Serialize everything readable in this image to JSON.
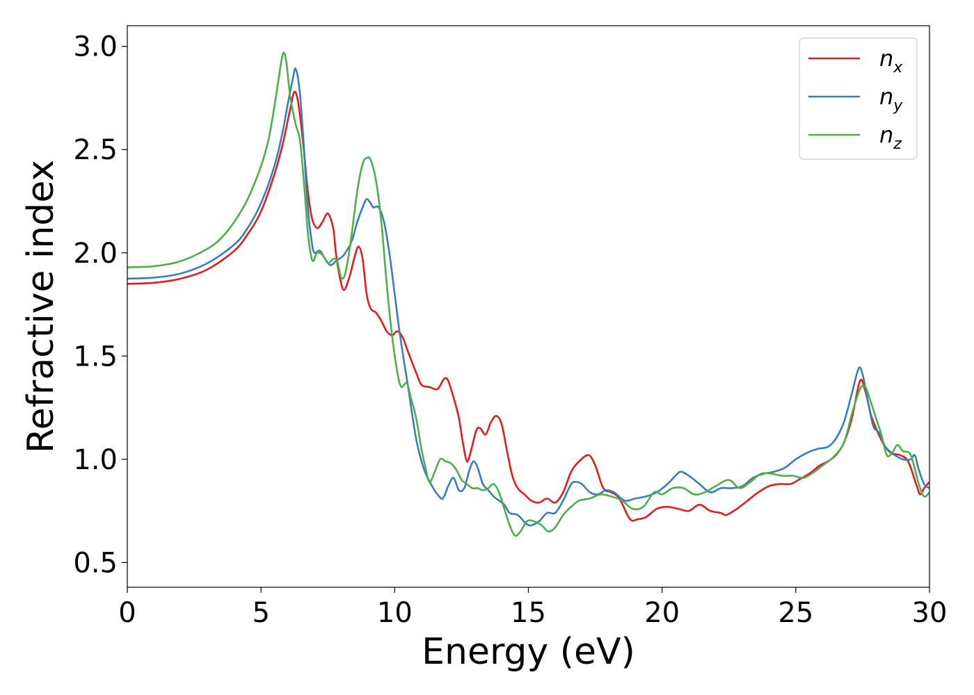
{
  "chart_data": {
    "type": "line",
    "xlabel": "Energy (eV)",
    "ylabel": "Refractive index",
    "xlim": [
      0,
      30
    ],
    "ylim": [
      0.38,
      3.1
    ],
    "xticks": [
      0,
      5,
      10,
      15,
      20,
      25,
      30
    ],
    "xtick_labels": [
      "0",
      "5",
      "10",
      "15",
      "20",
      "25",
      "30"
    ],
    "yticks": [
      0.5,
      1.0,
      1.5,
      2.0,
      2.5,
      3.0
    ],
    "ytick_labels": [
      "0.5",
      "1.0",
      "1.5",
      "2.0",
      "2.5",
      "3.0"
    ],
    "grid": false,
    "legend_position": "top-right",
    "series": [
      {
        "name": "n_x",
        "label_base": "n",
        "label_sub": "x",
        "color": "#e41a1c",
        "points": [
          [
            0,
            1.85
          ],
          [
            1,
            1.855
          ],
          [
            2,
            1.875
          ],
          [
            3,
            1.92
          ],
          [
            4,
            2.01
          ],
          [
            4.5,
            2.09
          ],
          [
            5,
            2.2
          ],
          [
            5.5,
            2.38
          ],
          [
            5.8,
            2.52
          ],
          [
            6.0,
            2.64
          ],
          [
            6.1,
            2.7
          ],
          [
            6.25,
            2.78
          ],
          [
            6.4,
            2.72
          ],
          [
            6.6,
            2.5
          ],
          [
            6.75,
            2.3
          ],
          [
            6.9,
            2.17
          ],
          [
            7.1,
            2.12
          ],
          [
            7.3,
            2.15
          ],
          [
            7.5,
            2.19
          ],
          [
            7.7,
            2.12
          ],
          [
            7.8,
            2.0
          ],
          [
            7.95,
            1.88
          ],
          [
            8.1,
            1.82
          ],
          [
            8.3,
            1.88
          ],
          [
            8.5,
            1.98
          ],
          [
            8.65,
            2.03
          ],
          [
            8.8,
            1.97
          ],
          [
            8.95,
            1.8
          ],
          [
            9.1,
            1.73
          ],
          [
            9.3,
            1.71
          ],
          [
            9.5,
            1.67
          ],
          [
            9.7,
            1.62
          ],
          [
            9.9,
            1.6
          ],
          [
            10.1,
            1.62
          ],
          [
            10.3,
            1.59
          ],
          [
            10.5,
            1.52
          ],
          [
            10.8,
            1.42
          ],
          [
            11.0,
            1.36
          ],
          [
            11.3,
            1.35
          ],
          [
            11.6,
            1.34
          ],
          [
            11.85,
            1.39
          ],
          [
            12.0,
            1.38
          ],
          [
            12.2,
            1.3
          ],
          [
            12.4,
            1.2
          ],
          [
            12.55,
            1.08
          ],
          [
            12.7,
            0.99
          ],
          [
            12.85,
            1.04
          ],
          [
            13.05,
            1.14
          ],
          [
            13.2,
            1.15
          ],
          [
            13.4,
            1.12
          ],
          [
            13.6,
            1.18
          ],
          [
            13.8,
            1.21
          ],
          [
            14.0,
            1.17
          ],
          [
            14.2,
            1.04
          ],
          [
            14.4,
            0.92
          ],
          [
            14.6,
            0.86
          ],
          [
            14.85,
            0.83
          ],
          [
            15.1,
            0.8
          ],
          [
            15.4,
            0.79
          ],
          [
            15.7,
            0.81
          ],
          [
            16.0,
            0.79
          ],
          [
            16.3,
            0.84
          ],
          [
            16.6,
            0.94
          ],
          [
            16.9,
            0.99
          ],
          [
            17.25,
            1.02
          ],
          [
            17.5,
            0.97
          ],
          [
            17.8,
            0.86
          ],
          [
            18.1,
            0.84
          ],
          [
            18.4,
            0.81
          ],
          [
            18.8,
            0.71
          ],
          [
            19.1,
            0.71
          ],
          [
            19.4,
            0.72
          ],
          [
            19.8,
            0.76
          ],
          [
            20.2,
            0.77
          ],
          [
            20.6,
            0.76
          ],
          [
            21.0,
            0.75
          ],
          [
            21.4,
            0.78
          ],
          [
            21.8,
            0.75
          ],
          [
            22.2,
            0.74
          ],
          [
            22.4,
            0.73
          ],
          [
            22.8,
            0.76
          ],
          [
            23.2,
            0.8
          ],
          [
            23.6,
            0.84
          ],
          [
            24.0,
            0.87
          ],
          [
            24.4,
            0.88
          ],
          [
            24.8,
            0.88
          ],
          [
            25.1,
            0.9
          ],
          [
            25.5,
            0.93
          ],
          [
            25.9,
            0.97
          ],
          [
            26.2,
            0.99
          ],
          [
            26.5,
            1.02
          ],
          [
            26.8,
            1.08
          ],
          [
            27.1,
            1.2
          ],
          [
            27.4,
            1.38
          ],
          [
            27.6,
            1.33
          ],
          [
            27.8,
            1.22
          ],
          [
            28.0,
            1.15
          ],
          [
            28.3,
            1.07
          ],
          [
            28.6,
            1.03
          ],
          [
            28.9,
            1.02
          ],
          [
            29.2,
            0.99
          ],
          [
            29.5,
            0.88
          ],
          [
            29.65,
            0.83
          ],
          [
            29.8,
            0.86
          ],
          [
            30.0,
            0.89
          ]
        ]
      },
      {
        "name": "n_y",
        "label_base": "n",
        "label_sub": "y",
        "color": "#377eb8",
        "points": [
          [
            0,
            1.875
          ],
          [
            1,
            1.88
          ],
          [
            2,
            1.9
          ],
          [
            3,
            1.95
          ],
          [
            4,
            2.04
          ],
          [
            4.5,
            2.12
          ],
          [
            5,
            2.24
          ],
          [
            5.5,
            2.42
          ],
          [
            5.8,
            2.58
          ],
          [
            6.0,
            2.72
          ],
          [
            6.2,
            2.85
          ],
          [
            6.3,
            2.89
          ],
          [
            6.45,
            2.78
          ],
          [
            6.6,
            2.52
          ],
          [
            6.75,
            2.22
          ],
          [
            6.9,
            2.05
          ],
          [
            7.0,
            2.0
          ],
          [
            7.2,
            2.01
          ],
          [
            7.4,
            1.97
          ],
          [
            7.6,
            1.94
          ],
          [
            7.8,
            1.96
          ],
          [
            8.1,
            1.99
          ],
          [
            8.4,
            2.06
          ],
          [
            8.6,
            2.15
          ],
          [
            8.8,
            2.22
          ],
          [
            8.95,
            2.26
          ],
          [
            9.1,
            2.24
          ],
          [
            9.2,
            2.22
          ],
          [
            9.4,
            2.22
          ],
          [
            9.6,
            2.15
          ],
          [
            9.8,
            2.0
          ],
          [
            10.0,
            1.8
          ],
          [
            10.2,
            1.6
          ],
          [
            10.5,
            1.35
          ],
          [
            10.8,
            1.1
          ],
          [
            11.1,
            0.95
          ],
          [
            11.4,
            0.87
          ],
          [
            11.6,
            0.83
          ],
          [
            11.8,
            0.81
          ],
          [
            12.0,
            0.87
          ],
          [
            12.2,
            0.91
          ],
          [
            12.4,
            0.85
          ],
          [
            12.6,
            0.86
          ],
          [
            12.8,
            0.95
          ],
          [
            12.95,
            0.99
          ],
          [
            13.1,
            0.96
          ],
          [
            13.3,
            0.88
          ],
          [
            13.5,
            0.85
          ],
          [
            13.7,
            0.82
          ],
          [
            13.9,
            0.8
          ],
          [
            14.1,
            0.78
          ],
          [
            14.3,
            0.74
          ],
          [
            14.6,
            0.73
          ],
          [
            14.9,
            0.69
          ],
          [
            15.1,
            0.68
          ],
          [
            15.4,
            0.7
          ],
          [
            15.7,
            0.74
          ],
          [
            16.0,
            0.74
          ],
          [
            16.3,
            0.8
          ],
          [
            16.6,
            0.88
          ],
          [
            16.8,
            0.89
          ],
          [
            17.0,
            0.88
          ],
          [
            17.3,
            0.84
          ],
          [
            17.6,
            0.83
          ],
          [
            17.9,
            0.85
          ],
          [
            18.2,
            0.84
          ],
          [
            18.6,
            0.8
          ],
          [
            19.0,
            0.81
          ],
          [
            19.4,
            0.82
          ],
          [
            19.8,
            0.84
          ],
          [
            20.2,
            0.88
          ],
          [
            20.5,
            0.92
          ],
          [
            20.7,
            0.94
          ],
          [
            21.0,
            0.92
          ],
          [
            21.4,
            0.88
          ],
          [
            21.8,
            0.84
          ],
          [
            22.2,
            0.86
          ],
          [
            22.6,
            0.86
          ],
          [
            23.0,
            0.87
          ],
          [
            23.4,
            0.91
          ],
          [
            23.8,
            0.93
          ],
          [
            24.2,
            0.94
          ],
          [
            24.6,
            0.96
          ],
          [
            25.0,
            1.0
          ],
          [
            25.4,
            1.03
          ],
          [
            25.8,
            1.05
          ],
          [
            26.2,
            1.06
          ],
          [
            26.5,
            1.1
          ],
          [
            26.8,
            1.18
          ],
          [
            27.1,
            1.32
          ],
          [
            27.35,
            1.44
          ],
          [
            27.5,
            1.41
          ],
          [
            27.7,
            1.28
          ],
          [
            27.9,
            1.16
          ],
          [
            28.1,
            1.13
          ],
          [
            28.4,
            1.05
          ],
          [
            28.7,
            1.02
          ],
          [
            29.0,
            1.0
          ],
          [
            29.3,
            1.0
          ],
          [
            29.45,
            1.02
          ],
          [
            29.6,
            0.95
          ],
          [
            29.8,
            0.88
          ],
          [
            30.0,
            0.86
          ]
        ]
      },
      {
        "name": "n_z",
        "label_base": "n",
        "label_sub": "z",
        "color": "#4daf4a",
        "points": [
          [
            0,
            1.93
          ],
          [
            1,
            1.935
          ],
          [
            2,
            1.96
          ],
          [
            3,
            2.02
          ],
          [
            3.5,
            2.07
          ],
          [
            4,
            2.15
          ],
          [
            4.5,
            2.26
          ],
          [
            5,
            2.42
          ],
          [
            5.3,
            2.56
          ],
          [
            5.55,
            2.75
          ],
          [
            5.75,
            2.92
          ],
          [
            5.85,
            2.97
          ],
          [
            5.95,
            2.92
          ],
          [
            6.1,
            2.75
          ],
          [
            6.3,
            2.62
          ],
          [
            6.45,
            2.55
          ],
          [
            6.6,
            2.35
          ],
          [
            6.75,
            2.1
          ],
          [
            6.85,
            2.0
          ],
          [
            6.95,
            1.96
          ],
          [
            7.1,
            2.0
          ],
          [
            7.3,
            1.99
          ],
          [
            7.5,
            1.95
          ],
          [
            7.7,
            1.97
          ],
          [
            7.85,
            1.96
          ],
          [
            8.0,
            1.88
          ],
          [
            8.15,
            1.9
          ],
          [
            8.35,
            2.05
          ],
          [
            8.6,
            2.3
          ],
          [
            8.8,
            2.43
          ],
          [
            8.95,
            2.46
          ],
          [
            9.1,
            2.45
          ],
          [
            9.3,
            2.35
          ],
          [
            9.5,
            2.15
          ],
          [
            9.7,
            1.85
          ],
          [
            9.9,
            1.6
          ],
          [
            10.1,
            1.42
          ],
          [
            10.25,
            1.35
          ],
          [
            10.45,
            1.37
          ],
          [
            10.6,
            1.3
          ],
          [
            10.8,
            1.2
          ],
          [
            11.0,
            1.05
          ],
          [
            11.15,
            0.96
          ],
          [
            11.3,
            0.89
          ],
          [
            11.5,
            0.94
          ],
          [
            11.7,
            1.0
          ],
          [
            11.9,
            0.99
          ],
          [
            12.1,
            0.98
          ],
          [
            12.3,
            0.95
          ],
          [
            12.5,
            0.9
          ],
          [
            12.7,
            0.88
          ],
          [
            12.9,
            0.86
          ],
          [
            13.1,
            0.86
          ],
          [
            13.3,
            0.85
          ],
          [
            13.5,
            0.86
          ],
          [
            13.7,
            0.88
          ],
          [
            13.9,
            0.84
          ],
          [
            14.1,
            0.76
          ],
          [
            14.3,
            0.68
          ],
          [
            14.5,
            0.63
          ],
          [
            14.7,
            0.65
          ],
          [
            14.95,
            0.7
          ],
          [
            15.2,
            0.7
          ],
          [
            15.5,
            0.68
          ],
          [
            15.75,
            0.65
          ],
          [
            16.0,
            0.67
          ],
          [
            16.3,
            0.73
          ],
          [
            16.6,
            0.77
          ],
          [
            16.9,
            0.8
          ],
          [
            17.3,
            0.81
          ],
          [
            17.7,
            0.83
          ],
          [
            18.1,
            0.82
          ],
          [
            18.5,
            0.8
          ],
          [
            18.9,
            0.76
          ],
          [
            19.3,
            0.77
          ],
          [
            19.7,
            0.84
          ],
          [
            20.0,
            0.83
          ],
          [
            20.4,
            0.86
          ],
          [
            20.8,
            0.86
          ],
          [
            21.2,
            0.83
          ],
          [
            21.6,
            0.84
          ],
          [
            22.0,
            0.87
          ],
          [
            22.5,
            0.9
          ],
          [
            22.9,
            0.86
          ],
          [
            23.3,
            0.89
          ],
          [
            23.7,
            0.93
          ],
          [
            24.1,
            0.93
          ],
          [
            24.5,
            0.92
          ],
          [
            24.9,
            0.92
          ],
          [
            25.3,
            0.91
          ],
          [
            25.7,
            0.94
          ],
          [
            26.0,
            0.97
          ],
          [
            26.4,
            1.01
          ],
          [
            26.8,
            1.08
          ],
          [
            27.1,
            1.22
          ],
          [
            27.4,
            1.34
          ],
          [
            27.6,
            1.35
          ],
          [
            27.8,
            1.28
          ],
          [
            28.0,
            1.2
          ],
          [
            28.2,
            1.12
          ],
          [
            28.4,
            1.02
          ],
          [
            28.6,
            1.03
          ],
          [
            28.8,
            1.07
          ],
          [
            29.0,
            1.04
          ],
          [
            29.3,
            1.02
          ],
          [
            29.6,
            0.88
          ],
          [
            29.8,
            0.82
          ],
          [
            30.0,
            0.84
          ]
        ]
      }
    ]
  }
}
